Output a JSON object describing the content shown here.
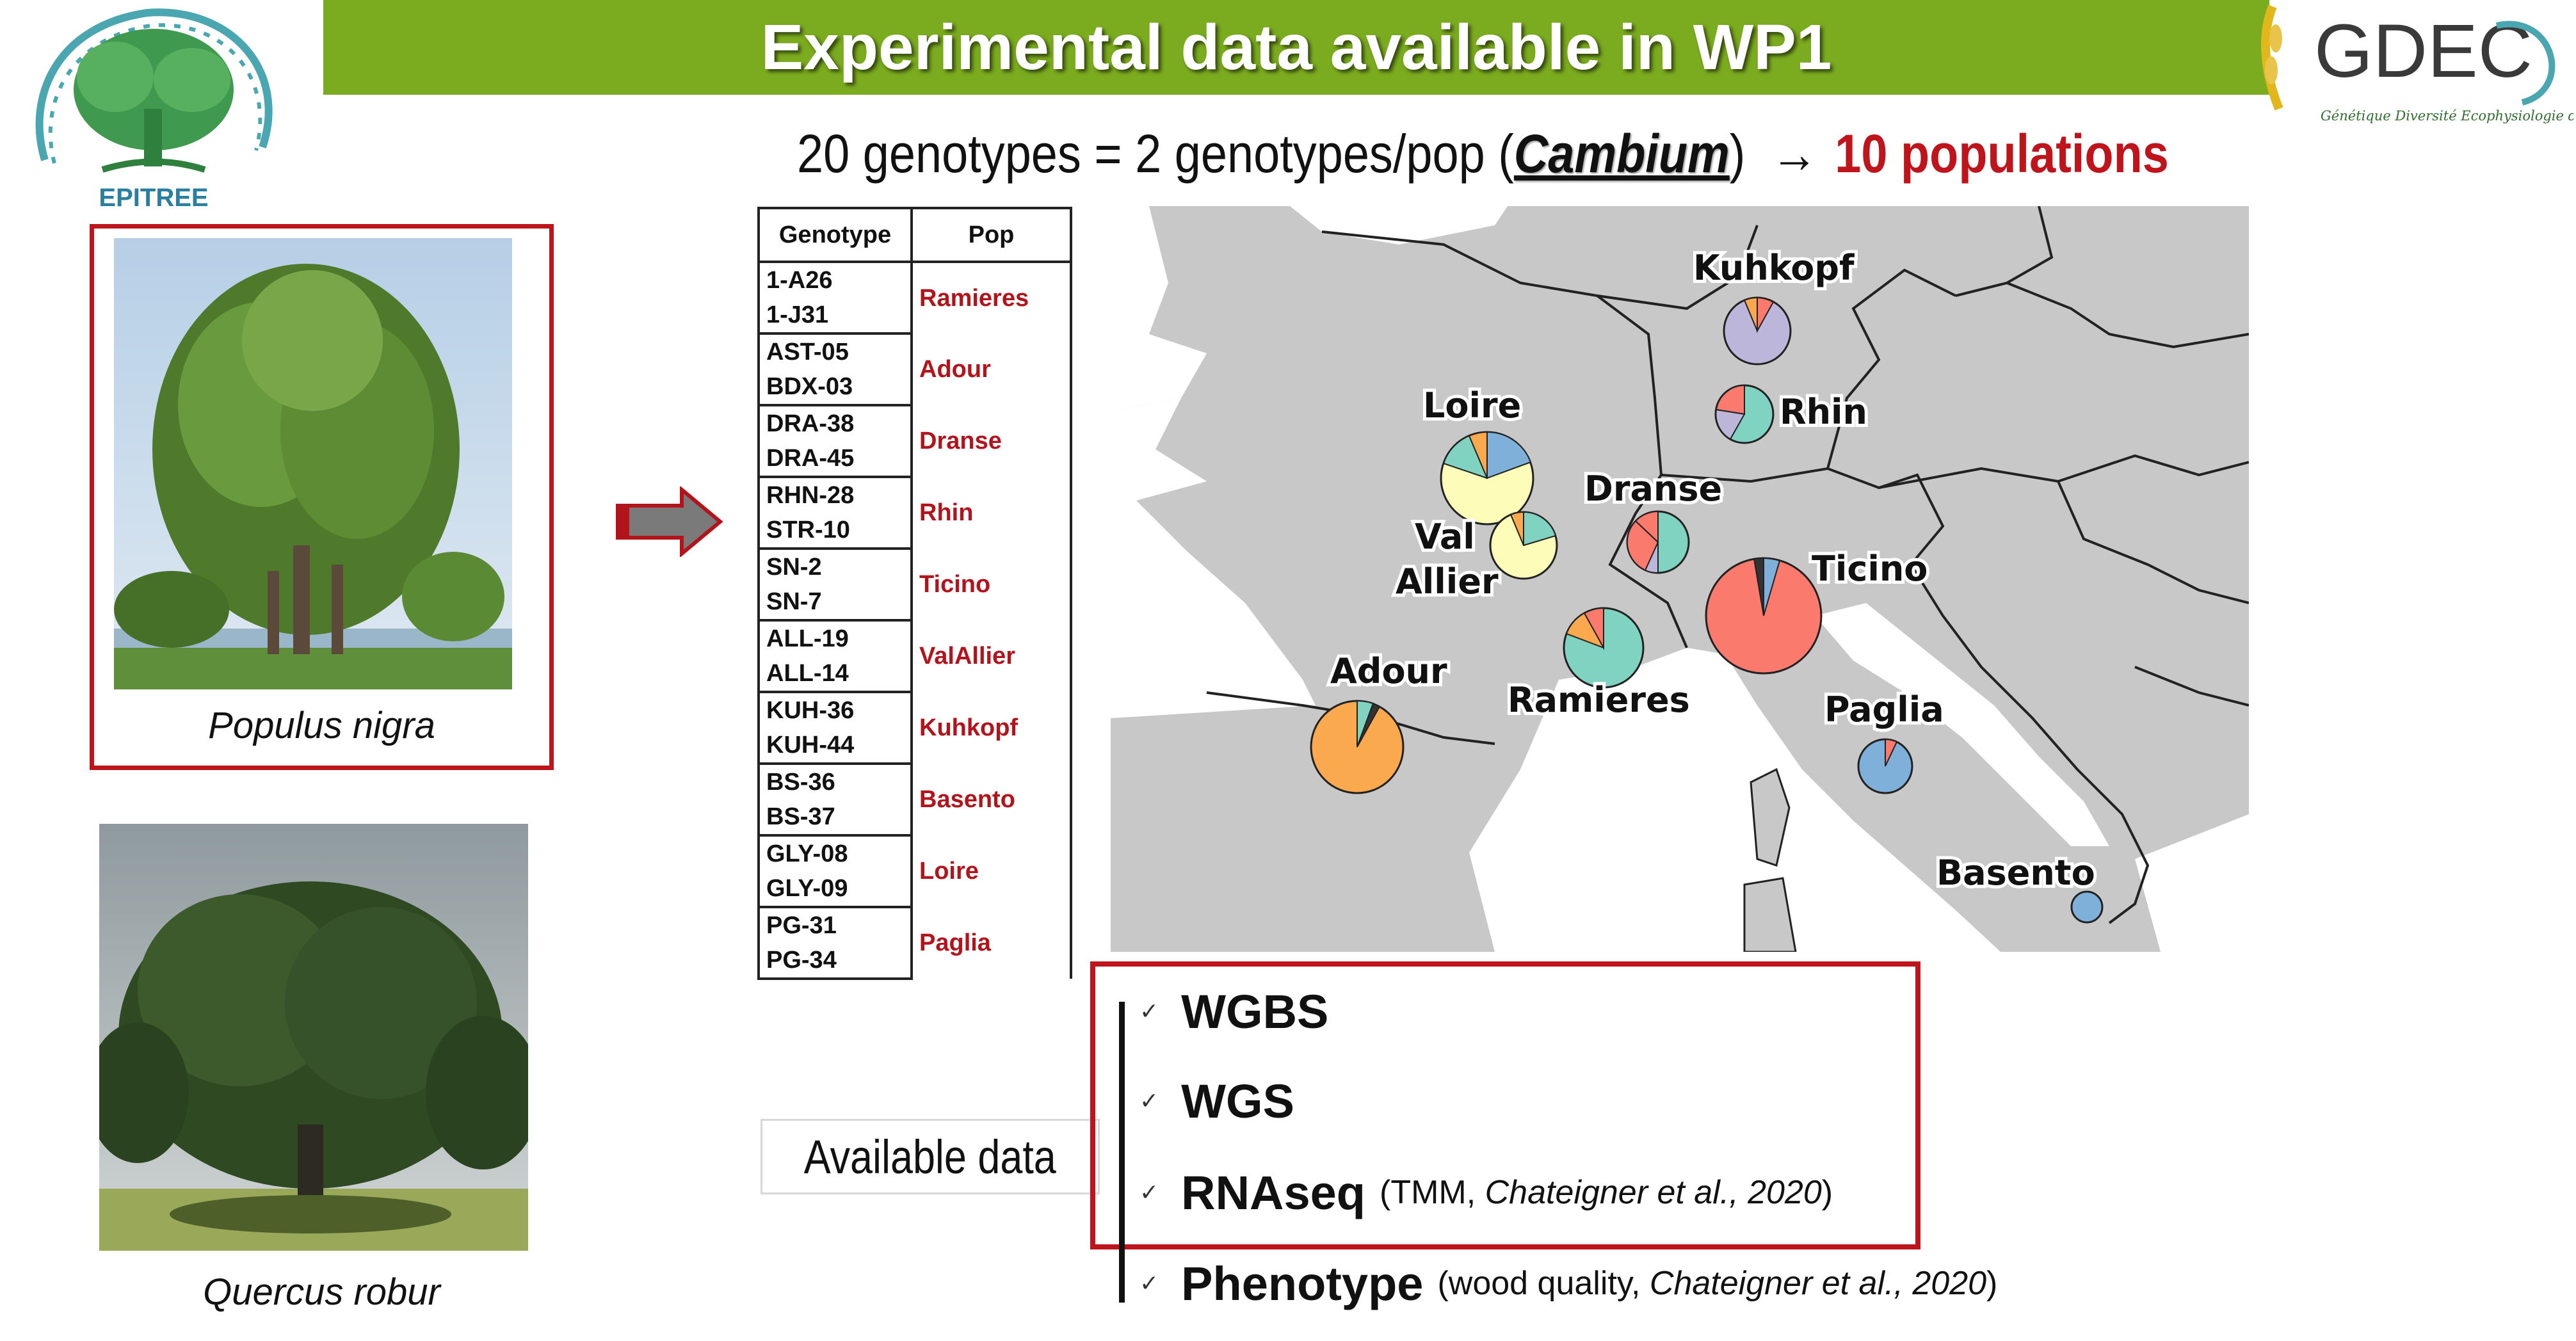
{
  "title": "Experimental data available in WP1",
  "logos": {
    "left_text": "EPITREE",
    "right_text": "GDEC",
    "right_subtext": "Génétique Diversité Ecophysiologie des Céréales"
  },
  "subtitle": {
    "prefix": "20 genotypes = 2 genotypes/pop (",
    "emphasis": "Cambium",
    "suffix": ")",
    "arrow": "→",
    "result": "10 populations"
  },
  "species": [
    {
      "name": "Populus nigra",
      "icon": "poplar-tree-photo"
    },
    {
      "name": "Quercus robur",
      "icon": "oak-tree-photo"
    }
  ],
  "table": {
    "headers": [
      "Genotype",
      "Pop"
    ],
    "rows": [
      {
        "genotypes": [
          "1-A26",
          "1-J31"
        ],
        "pop": "Ramieres"
      },
      {
        "genotypes": [
          "AST-05",
          "BDX-03"
        ],
        "pop": "Adour"
      },
      {
        "genotypes": [
          "DRA-38",
          "DRA-45"
        ],
        "pop": "Dranse"
      },
      {
        "genotypes": [
          "RHN-28",
          "STR-10"
        ],
        "pop": "Rhin"
      },
      {
        "genotypes": [
          "SN-2",
          "SN-7"
        ],
        "pop": "Ticino"
      },
      {
        "genotypes": [
          "ALL-19",
          "ALL-14"
        ],
        "pop": "ValAllier"
      },
      {
        "genotypes": [
          "KUH-36",
          "KUH-44"
        ],
        "pop": "Kuhkopf"
      },
      {
        "genotypes": [
          "BS-36",
          "BS-37"
        ],
        "pop": "Basento"
      },
      {
        "genotypes": [
          "GLY-08",
          "GLY-09"
        ],
        "pop": "Loire"
      },
      {
        "genotypes": [
          "PG-31",
          "PG-34"
        ],
        "pop": "Paglia"
      }
    ]
  },
  "map": {
    "labels": [
      "Kuhkopf",
      "Rhin",
      "Loire",
      "Dranse",
      "Val",
      "Allier",
      "Ticino",
      "Adour",
      "Ramieres",
      "Paglia",
      "Basento"
    ],
    "colors": {
      "land": "#c8c8c8",
      "sea": "#ffffff",
      "border": "#222222",
      "orange": "#fba94e",
      "yellow": "#fdfcb8",
      "teal": "#80d3c0",
      "salmon": "#fb7a6e",
      "lavender": "#bcb6db",
      "blue": "#7fb0d9"
    }
  },
  "available": {
    "label": "Available data",
    "items": [
      {
        "check": "✓",
        "label": "WGBS",
        "note": "",
        "note_italic": "",
        "note_tail": ""
      },
      {
        "check": "✓",
        "label": "WGS",
        "note": "",
        "note_italic": "",
        "note_tail": ""
      },
      {
        "check": "✓",
        "label": "RNAseq",
        "note": "(TMM, ",
        "note_italic": "Chateigner et al., 2020",
        "note_tail": ")"
      },
      {
        "check": "✓",
        "label": "Phenotype",
        "note": "(wood quality, ",
        "note_italic": "Chateigner et al., 2020",
        "note_tail": ")"
      }
    ]
  }
}
